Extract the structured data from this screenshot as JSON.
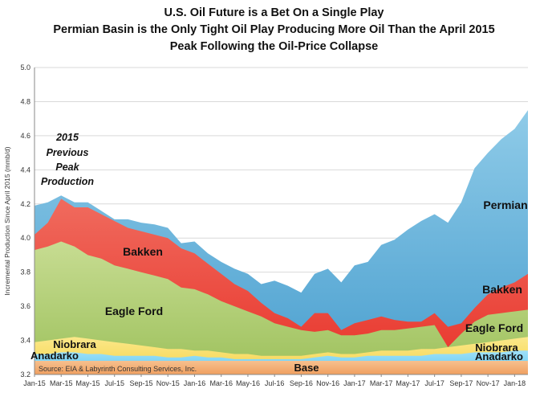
{
  "titles": {
    "line1": "U.S. Oil Future is a Bet On a Single Play",
    "line2": "Permian Basin is the Only Tight Oil Play Producing More Oil Than the April 2015",
    "line3": "Peak Following the Oil-Price Collapse"
  },
  "annotation": [
    "2015",
    "Previous",
    "Peak",
    "Production"
  ],
  "source_note": "Source: EIA & Labyrinth Consulting Services, Inc.",
  "chart_data": {
    "type": "area",
    "stacked": true,
    "title": "U.S. Oil Future is a Bet On a Single Play",
    "subtitle": "Permian Basin is the Only Tight Oil Play Producing More Oil Than the April 2015 Peak Following the Oil-Price Collapse",
    "ylabel": "Incremental Production Since April 2015 (mmb/d)",
    "ylim": [
      3.2,
      5.0
    ],
    "yticks": [
      "3.2",
      "3.4",
      "3.6",
      "3.8",
      "4.0",
      "4.2",
      "4.4",
      "4.6",
      "4.8",
      "5.0"
    ],
    "x": [
      "Jan-15",
      "Feb-15",
      "Mar-15",
      "Apr-15",
      "May-15",
      "Jun-15",
      "Jul-15",
      "Aug-15",
      "Sep-15",
      "Oct-15",
      "Nov-15",
      "Dec-15",
      "Jan-16",
      "Feb-16",
      "Mar-16",
      "Apr-16",
      "May-16",
      "Jun-16",
      "Jul-16",
      "Aug-16",
      "Sep-16",
      "Oct-16",
      "Nov-16",
      "Dec-16",
      "Jan-17",
      "Feb-17",
      "Mar-17",
      "Apr-17",
      "May-17",
      "Jun-17",
      "Jul-17",
      "Aug-17",
      "Sep-17",
      "Oct-17",
      "Nov-17",
      "Dec-17",
      "Jan-18",
      "Feb-18"
    ],
    "xtick_labels": [
      "Jan-15",
      "Mar-15",
      "May-15",
      "Jul-15",
      "Sep-15",
      "Nov-15",
      "Jan-16",
      "Mar-16",
      "May-16",
      "Jul-16",
      "Sep-16",
      "Nov-16",
      "Jan-17",
      "Mar-17",
      "May-17",
      "Jul-17",
      "Sep-17",
      "Nov-17",
      "Jan-18"
    ],
    "gridlines": true,
    "legend": "labels on areas",
    "series_cumulative_top": [
      {
        "name": "Base",
        "color": "#f0a060",
        "values": [
          3.28,
          3.28,
          3.28,
          3.28,
          3.28,
          3.28,
          3.28,
          3.28,
          3.28,
          3.28,
          3.28,
          3.28,
          3.28,
          3.28,
          3.28,
          3.28,
          3.28,
          3.28,
          3.28,
          3.28,
          3.28,
          3.28,
          3.28,
          3.28,
          3.28,
          3.28,
          3.28,
          3.28,
          3.28,
          3.28,
          3.28,
          3.28,
          3.28,
          3.28,
          3.28,
          3.28,
          3.28,
          3.28
        ]
      },
      {
        "name": "Anadarko",
        "color": "#5bc8f0",
        "values": [
          3.32,
          3.32,
          3.33,
          3.33,
          3.32,
          3.32,
          3.31,
          3.31,
          3.31,
          3.31,
          3.3,
          3.3,
          3.31,
          3.3,
          3.3,
          3.29,
          3.29,
          3.29,
          3.29,
          3.29,
          3.29,
          3.3,
          3.31,
          3.3,
          3.3,
          3.31,
          3.31,
          3.31,
          3.31,
          3.31,
          3.32,
          3.32,
          3.32,
          3.33,
          3.33,
          3.33,
          3.34,
          3.34
        ]
      },
      {
        "name": "Niobrara",
        "color": "#f5d34a",
        "values": [
          3.39,
          3.4,
          3.41,
          3.42,
          3.41,
          3.4,
          3.39,
          3.38,
          3.37,
          3.36,
          3.35,
          3.35,
          3.34,
          3.34,
          3.33,
          3.32,
          3.32,
          3.31,
          3.31,
          3.31,
          3.31,
          3.32,
          3.33,
          3.32,
          3.32,
          3.33,
          3.34,
          3.34,
          3.34,
          3.35,
          3.35,
          3.36,
          3.37,
          3.38,
          3.39,
          3.4,
          3.41,
          3.42
        ]
      },
      {
        "name": "Eagle Ford",
        "color": "#9dc15c",
        "values": [
          3.93,
          3.95,
          3.98,
          3.95,
          3.9,
          3.88,
          3.84,
          3.82,
          3.8,
          3.78,
          3.76,
          3.71,
          3.7,
          3.67,
          3.63,
          3.6,
          3.57,
          3.54,
          3.5,
          3.48,
          3.46,
          3.45,
          3.46,
          3.43,
          3.43,
          3.44,
          3.46,
          3.46,
          3.47,
          3.48,
          3.49,
          3.36,
          3.44,
          3.51,
          3.55,
          3.56,
          3.57,
          3.58
        ]
      },
      {
        "name": "Bakken",
        "color": "#e8332a",
        "values": [
          4.02,
          4.09,
          4.23,
          4.18,
          4.18,
          4.14,
          4.1,
          4.06,
          4.04,
          4.02,
          4.0,
          3.94,
          3.91,
          3.85,
          3.79,
          3.73,
          3.69,
          3.62,
          3.56,
          3.53,
          3.48,
          3.56,
          3.56,
          3.46,
          3.5,
          3.52,
          3.54,
          3.52,
          3.51,
          3.51,
          3.56,
          3.48,
          3.5,
          3.59,
          3.67,
          3.71,
          3.74,
          3.79
        ]
      },
      {
        "name": "Permian",
        "color": "#4a9fcf",
        "values": [
          4.19,
          4.21,
          4.25,
          4.21,
          4.21,
          4.16,
          4.11,
          4.11,
          4.09,
          4.08,
          4.06,
          3.97,
          3.98,
          3.91,
          3.86,
          3.82,
          3.79,
          3.73,
          3.75,
          3.72,
          3.68,
          3.79,
          3.82,
          3.74,
          3.84,
          3.86,
          3.96,
          3.99,
          4.05,
          4.1,
          4.14,
          4.09,
          4.21,
          4.41,
          4.5,
          4.58,
          4.64,
          4.75
        ]
      }
    ],
    "area_labels": [
      {
        "name": "Permian",
        "text": "Permian"
      },
      {
        "name": "Bakken",
        "text": "Bakken"
      },
      {
        "name": "Bakken",
        "text": "Bakken"
      },
      {
        "name": "Eagle Ford",
        "text": "Eagle Ford"
      },
      {
        "name": "Eagle Ford",
        "text": "Eagle Ford"
      },
      {
        "name": "Niobrara",
        "text": "Niobrara"
      },
      {
        "name": "Niobrara",
        "text": "Niobrara"
      },
      {
        "name": "Anadarko",
        "text": "Anadarko"
      },
      {
        "name": "Anadarko",
        "text": "Anadarko"
      },
      {
        "name": "Base",
        "text": "Base"
      }
    ]
  }
}
